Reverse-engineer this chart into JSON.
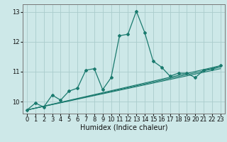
{
  "title": "",
  "xlabel": "Humidex (Indice chaleur)",
  "bg_color": "#cde8e8",
  "grid_color": "#aacccc",
  "line_color": "#1a7a6e",
  "xlim": [
    -0.5,
    23.5
  ],
  "ylim": [
    9.6,
    13.25
  ],
  "yticks": [
    10,
    11,
    12,
    13
  ],
  "xticks": [
    0,
    1,
    2,
    3,
    4,
    5,
    6,
    7,
    8,
    9,
    10,
    11,
    12,
    13,
    14,
    15,
    16,
    17,
    18,
    19,
    20,
    21,
    22,
    23
  ],
  "series": [
    {
      "x": [
        0,
        1,
        2,
        3,
        4,
        5,
        6,
        7,
        8,
        9,
        10,
        11,
        12,
        13,
        14,
        15,
        16,
        17,
        18,
        19,
        20,
        21,
        22,
        23
      ],
      "y": [
        9.72,
        9.95,
        9.82,
        10.22,
        10.05,
        10.35,
        10.45,
        11.05,
        11.1,
        10.4,
        10.8,
        12.2,
        12.25,
        13.02,
        12.3,
        11.35,
        11.15,
        10.85,
        10.95,
        10.95,
        10.8,
        11.05,
        11.1,
        11.2
      ],
      "markers": true
    },
    {
      "x": [
        0,
        23
      ],
      "y": [
        9.72,
        11.2
      ],
      "markers": false,
      "straight": true
    },
    {
      "x": [
        0,
        23
      ],
      "y": [
        9.72,
        11.15
      ],
      "markers": false,
      "straight": true
    },
    {
      "x": [
        0,
        23
      ],
      "y": [
        9.72,
        11.1
      ],
      "markers": false,
      "straight": true
    }
  ],
  "xlabel_fontsize": 7,
  "tick_fontsize": 6
}
